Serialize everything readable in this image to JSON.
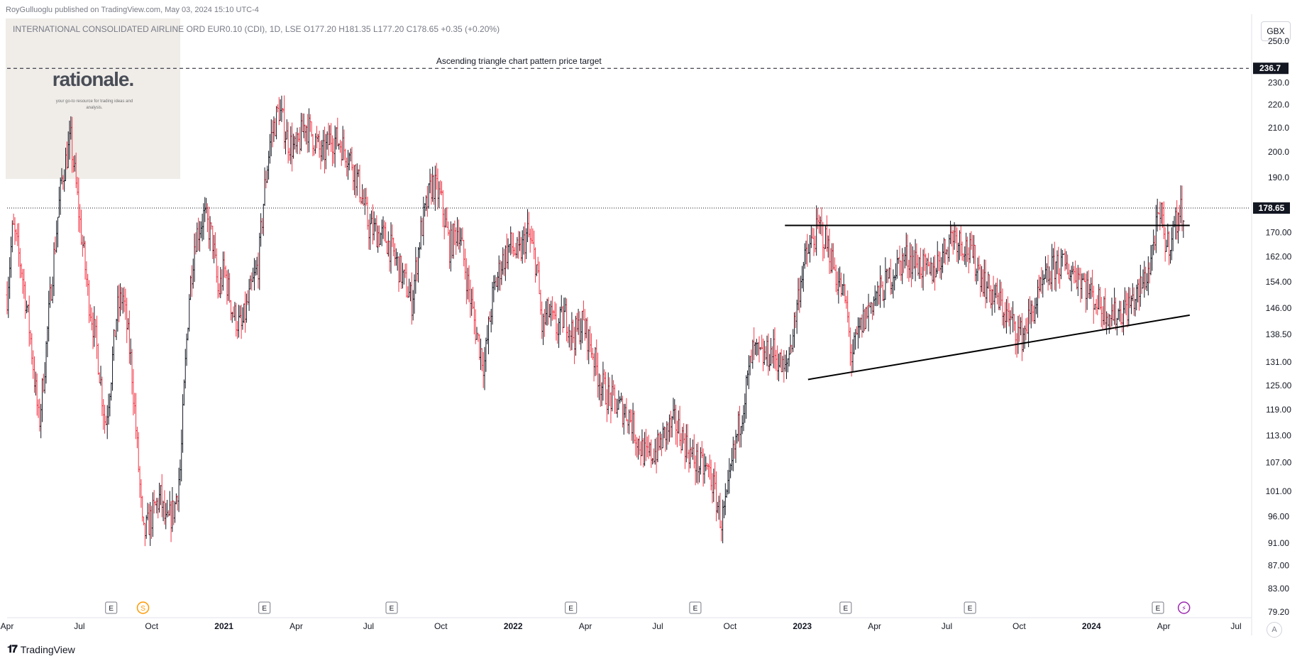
{
  "publisher": "RoyGulluoglu published on TradingView.com, May 03, 2024 15:10 UTC-4",
  "symbol_line": "INTERNATIONAL CONSOLIDATED AIRLINE ORD EUR0.10 (CDI), 1D, LSE  O177.20  H181.35  L177.20  C178.65  +0.35 (+0.20%)",
  "logo": {
    "word": "rationale.",
    "tagline": "your go-to resource for trading ideas and analysis."
  },
  "unit": "GBX",
  "brand": "TradingView",
  "corner_button": "A",
  "colors": {
    "up": "#131722",
    "down": "#f23645",
    "price_tag_bg": "#131722",
    "event_purple": "#9c27b0",
    "event_orange": "#ff9800"
  },
  "chart_data": {
    "type": "line",
    "scale": "log",
    "annotation": "Ascending triangle chart pattern price target",
    "target_price": 236.7,
    "target_label": "236.7",
    "last_price": 178.65,
    "last_label": "178.65",
    "ylim": [
      79.2,
      250.0
    ],
    "y_ticks": [
      {
        "v": 250.0,
        "label": "250.0"
      },
      {
        "v": 230.0,
        "label": "230.0"
      },
      {
        "v": 220.0,
        "label": "220.0"
      },
      {
        "v": 210.0,
        "label": "210.0"
      },
      {
        "v": 200.0,
        "label": "200.0"
      },
      {
        "v": 190.0,
        "label": "190.0"
      },
      {
        "v": 170.0,
        "label": "170.00"
      },
      {
        "v": 162.0,
        "label": "162.00"
      },
      {
        "v": 154.0,
        "label": "154.00"
      },
      {
        "v": 146.0,
        "label": "146.00"
      },
      {
        "v": 138.5,
        "label": "138.50"
      },
      {
        "v": 131.0,
        "label": "131.00"
      },
      {
        "v": 125.0,
        "label": "125.00"
      },
      {
        "v": 119.0,
        "label": "119.00"
      },
      {
        "v": 113.0,
        "label": "113.00"
      },
      {
        "v": 107.0,
        "label": "107.00"
      },
      {
        "v": 101.0,
        "label": "101.00"
      },
      {
        "v": 96.0,
        "label": "96.00"
      },
      {
        "v": 91.0,
        "label": "91.00"
      },
      {
        "v": 87.0,
        "label": "87.00"
      },
      {
        "v": 83.0,
        "label": "83.00"
      },
      {
        "v": 79.2,
        "label": "79.20"
      }
    ],
    "x_ticks": [
      {
        "t": 2020.25,
        "label": "Apr",
        "major": false
      },
      {
        "t": 2020.5,
        "label": "Jul",
        "major": false
      },
      {
        "t": 2020.75,
        "label": "Oct",
        "major": false
      },
      {
        "t": 2021.0,
        "label": "2021",
        "major": true
      },
      {
        "t": 2021.25,
        "label": "Apr",
        "major": false
      },
      {
        "t": 2021.5,
        "label": "Jul",
        "major": false
      },
      {
        "t": 2021.75,
        "label": "Oct",
        "major": false
      },
      {
        "t": 2022.0,
        "label": "2022",
        "major": true
      },
      {
        "t": 2022.25,
        "label": "Apr",
        "major": false
      },
      {
        "t": 2022.5,
        "label": "Jul",
        "major": false
      },
      {
        "t": 2022.75,
        "label": "Oct",
        "major": false
      },
      {
        "t": 2023.0,
        "label": "2023",
        "major": true
      },
      {
        "t": 2023.25,
        "label": "Apr",
        "major": false
      },
      {
        "t": 2023.5,
        "label": "Jul",
        "major": false
      },
      {
        "t": 2023.75,
        "label": "Oct",
        "major": false
      },
      {
        "t": 2024.0,
        "label": "2024",
        "major": true
      },
      {
        "t": 2024.25,
        "label": "Apr",
        "major": false
      },
      {
        "t": 2024.5,
        "label": "Jul",
        "major": false
      }
    ],
    "xlim": [
      2020.25,
      2024.5
    ],
    "price_path": [
      [
        2020.25,
        150
      ],
      [
        2020.27,
        172
      ],
      [
        2020.3,
        158
      ],
      [
        2020.33,
        138
      ],
      [
        2020.36,
        115
      ],
      [
        2020.38,
        130
      ],
      [
        2020.41,
        160
      ],
      [
        2020.44,
        190
      ],
      [
        2020.47,
        205
      ],
      [
        2020.5,
        175
      ],
      [
        2020.53,
        150
      ],
      [
        2020.56,
        135
      ],
      [
        2020.59,
        115
      ],
      [
        2020.61,
        128
      ],
      [
        2020.63,
        145
      ],
      [
        2020.65,
        150
      ],
      [
        2020.68,
        130
      ],
      [
        2020.7,
        110
      ],
      [
        2020.72,
        92
      ],
      [
        2020.75,
        96
      ],
      [
        2020.78,
        100
      ],
      [
        2020.8,
        94
      ],
      [
        2020.83,
        98
      ],
      [
        2020.85,
        106
      ],
      [
        2020.88,
        150
      ],
      [
        2020.9,
        168
      ],
      [
        2020.93,
        176
      ],
      [
        2020.96,
        168
      ],
      [
        2020.98,
        150
      ],
      [
        2021.0,
        158
      ],
      [
        2021.03,
        145
      ],
      [
        2021.06,
        140
      ],
      [
        2021.09,
        150
      ],
      [
        2021.12,
        160
      ],
      [
        2021.14,
        185
      ],
      [
        2021.16,
        205
      ],
      [
        2021.19,
        218
      ],
      [
        2021.22,
        205
      ],
      [
        2021.25,
        200
      ],
      [
        2021.28,
        212
      ],
      [
        2021.31,
        206
      ],
      [
        2021.34,
        198
      ],
      [
        2021.37,
        206
      ],
      [
        2021.4,
        204
      ],
      [
        2021.44,
        197
      ],
      [
        2021.47,
        186
      ],
      [
        2021.5,
        172
      ],
      [
        2021.53,
        170
      ],
      [
        2021.56,
        168
      ],
      [
        2021.59,
        162
      ],
      [
        2021.62,
        155
      ],
      [
        2021.65,
        148
      ],
      [
        2021.68,
        170
      ],
      [
        2021.72,
        188
      ],
      [
        2021.75,
        182
      ],
      [
        2021.78,
        165
      ],
      [
        2021.81,
        172
      ],
      [
        2021.84,
        155
      ],
      [
        2021.87,
        140
      ],
      [
        2021.9,
        130
      ],
      [
        2021.93,
        150
      ],
      [
        2021.96,
        160
      ],
      [
        2021.99,
        166
      ],
      [
        2022.02,
        162
      ],
      [
        2022.05,
        170
      ],
      [
        2022.08,
        160
      ],
      [
        2022.1,
        140
      ],
      [
        2022.12,
        145
      ],
      [
        2022.15,
        140
      ],
      [
        2022.18,
        144
      ],
      [
        2022.21,
        138
      ],
      [
        2022.24,
        142
      ],
      [
        2022.27,
        135
      ],
      [
        2022.3,
        126
      ],
      [
        2022.33,
        122
      ],
      [
        2022.36,
        120
      ],
      [
        2022.4,
        118
      ],
      [
        2022.43,
        112
      ],
      [
        2022.46,
        108
      ],
      [
        2022.5,
        110
      ],
      [
        2022.53,
        114
      ],
      [
        2022.56,
        116
      ],
      [
        2022.59,
        112
      ],
      [
        2022.62,
        108
      ],
      [
        2022.65,
        106
      ],
      [
        2022.68,
        105
      ],
      [
        2022.7,
        100
      ],
      [
        2022.72,
        95
      ],
      [
        2022.74,
        99
      ],
      [
        2022.76,
        108
      ],
      [
        2022.8,
        122
      ],
      [
        2022.83,
        134
      ],
      [
        2022.86,
        132
      ],
      [
        2022.9,
        134
      ],
      [
        2022.94,
        128
      ],
      [
        2022.97,
        140
      ],
      [
        2023.0,
        158
      ],
      [
        2023.03,
        166
      ],
      [
        2023.06,
        172
      ],
      [
        2023.09,
        165
      ],
      [
        2023.12,
        155
      ],
      [
        2023.15,
        148
      ],
      [
        2023.17,
        132
      ],
      [
        2023.2,
        140
      ],
      [
        2023.24,
        148
      ],
      [
        2023.28,
        152
      ],
      [
        2023.32,
        158
      ],
      [
        2023.36,
        162
      ],
      [
        2023.4,
        160
      ],
      [
        2023.44,
        156
      ],
      [
        2023.48,
        162
      ],
      [
        2023.52,
        170
      ],
      [
        2023.56,
        166
      ],
      [
        2023.6,
        160
      ],
      [
        2023.64,
        152
      ],
      [
        2023.68,
        148
      ],
      [
        2023.72,
        142
      ],
      [
        2023.76,
        138
      ],
      [
        2023.8,
        146
      ],
      [
        2023.84,
        154
      ],
      [
        2023.88,
        160
      ],
      [
        2023.92,
        158
      ],
      [
        2023.96,
        156
      ],
      [
        2024.0,
        150
      ],
      [
        2024.04,
        146
      ],
      [
        2024.08,
        144
      ],
      [
        2024.12,
        146
      ],
      [
        2024.16,
        150
      ],
      [
        2024.2,
        158
      ],
      [
        2024.22,
        170
      ],
      [
        2024.24,
        176
      ],
      [
        2024.26,
        165
      ],
      [
        2024.28,
        170
      ],
      [
        2024.3,
        176
      ],
      [
        2024.32,
        178.65
      ]
    ],
    "trendlines": [
      {
        "name": "resistance",
        "from": [
          2022.94,
          172.5
        ],
        "to": [
          2024.34,
          172.5
        ]
      },
      {
        "name": "support",
        "from": [
          2023.02,
          126.5
        ],
        "to": [
          2024.34,
          144.0
        ]
      }
    ],
    "events": [
      {
        "t": 2020.61,
        "label": "E"
      },
      {
        "t": 2020.72,
        "label": "S"
      },
      {
        "t": 2021.14,
        "label": "E"
      },
      {
        "t": 2021.58,
        "label": "E"
      },
      {
        "t": 2022.2,
        "label": "E"
      },
      {
        "t": 2022.63,
        "label": "E"
      },
      {
        "t": 2023.15,
        "label": "E"
      },
      {
        "t": 2023.58,
        "label": "E"
      },
      {
        "t": 2024.23,
        "label": "E"
      },
      {
        "t": 2024.32,
        "label": "⚡"
      }
    ]
  }
}
